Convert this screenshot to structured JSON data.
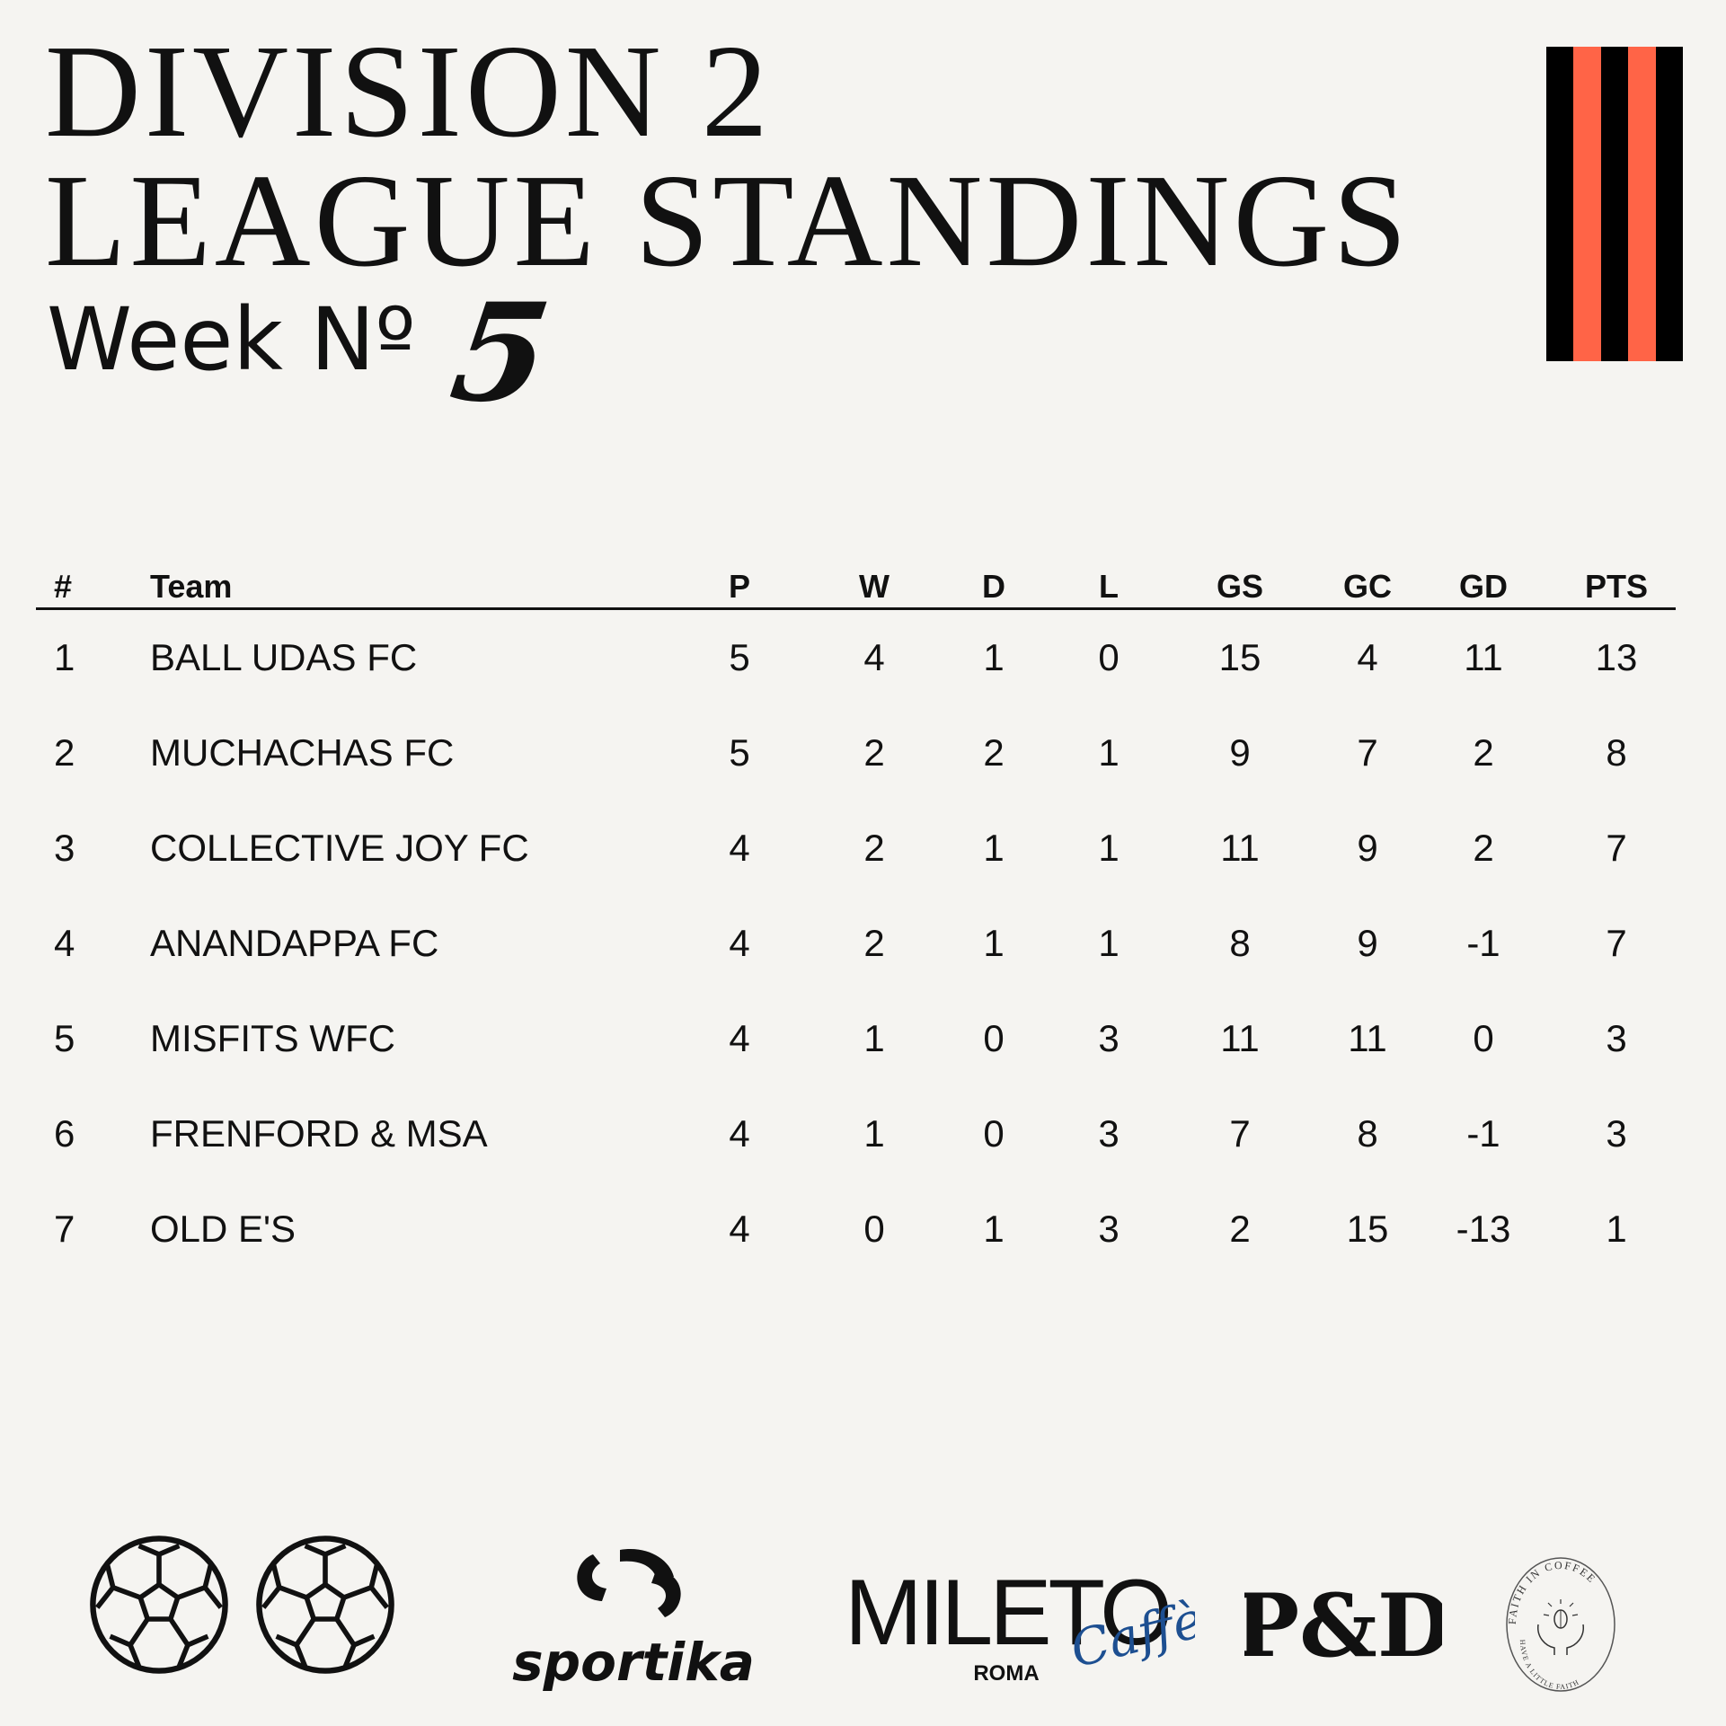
{
  "header": {
    "title_line1": "DIVISION 2",
    "title_line2": "LEAGUE STANDINGS",
    "week_label": "Week Nº",
    "week_number": "5"
  },
  "colors": {
    "accent": "#ff6447",
    "stripe_dark": "#000000",
    "background": "#f5f4f1"
  },
  "table": {
    "columns": [
      "#",
      "Team",
      "P",
      "W",
      "D",
      "L",
      "GS",
      "GC",
      "GD",
      "PTS"
    ],
    "rows": [
      [
        "1",
        "BALL UDAS FC",
        "5",
        "4",
        "1",
        "0",
        "15",
        "4",
        "11",
        "13"
      ],
      [
        "2",
        "MUCHACHAS FC",
        "5",
        "2",
        "2",
        "1",
        "9",
        "7",
        "2",
        "8"
      ],
      [
        "3",
        "COLLECTIVE JOY FC",
        "4",
        "2",
        "1",
        "1",
        "11",
        "9",
        "2",
        "7"
      ],
      [
        "4",
        "ANANDAPPA FC",
        "4",
        "2",
        "1",
        "1",
        "8",
        "9",
        "-1",
        "7"
      ],
      [
        "5",
        "MISFITS WFC",
        "4",
        "1",
        "0",
        "3",
        "11",
        "11",
        "0",
        "3"
      ],
      [
        "6",
        "FRENFORD & MSA",
        "4",
        "1",
        "0",
        "3",
        "7",
        "8",
        "-1",
        "3"
      ],
      [
        "7",
        "OLD E'S",
        "4",
        "0",
        "1",
        "3",
        "2",
        "15",
        "-13",
        "1"
      ]
    ]
  },
  "sponsors": {
    "icons": [
      "football-icon",
      "football-icon"
    ],
    "sportika": "sportika",
    "mileto": "MILETO",
    "mileto_sub": "ROMA",
    "mileto_script": "Caffè",
    "pd": "P&D",
    "faith_top": "FAITH IN COFFEE",
    "faith_bottom": "HAVE A LITTLE FAITH"
  }
}
